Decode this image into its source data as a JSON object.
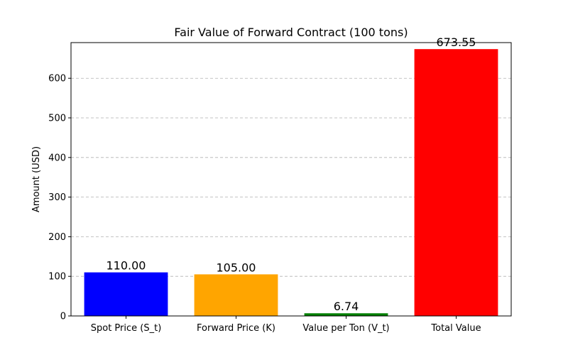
{
  "chart_data": {
    "type": "bar",
    "title": "Fair Value of Forward Contract (100 tons)",
    "xlabel": "",
    "ylabel": "Amount (USD)",
    "categories": [
      "Spot Price (S_t)",
      "Forward Price (K)",
      "Value per Ton (V_t)",
      "Total Value"
    ],
    "values": [
      110.0,
      105.0,
      6.74,
      673.55
    ],
    "value_labels": [
      "110.00",
      "105.00",
      "6.74",
      "673.55"
    ],
    "colors": [
      "#0000ff",
      "#ffa500",
      "#008000",
      "#ff0000"
    ],
    "ylim": [
      0,
      690
    ],
    "yticks": [
      0,
      100,
      200,
      300,
      400,
      500,
      600
    ],
    "grid": "y-dashed",
    "legend": "none"
  }
}
